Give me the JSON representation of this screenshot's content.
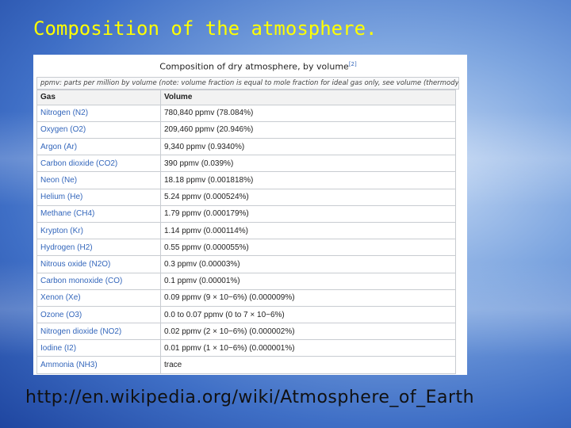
{
  "slide": {
    "title": "Composition of the atmosphere.",
    "url": "http://en.wikipedia.org/wiki/Atmosphere_of_Earth"
  },
  "table": {
    "caption": "Composition of dry atmosphere, by volume",
    "caption_ref": "[2]",
    "note": "ppmv: parts per million by volume (note: volume fraction is equal to mole fraction for ideal gas only, see volume (thermodynamics))",
    "headers": [
      "Gas",
      "Volume"
    ],
    "rows": [
      {
        "gas": "Nitrogen (N2)",
        "volume": "780,840 ppmv (78.084%)"
      },
      {
        "gas": "Oxygen (O2)",
        "volume": "209,460 ppmv (20.946%)"
      },
      {
        "gas": "Argon (Ar)",
        "volume": "9,340 ppmv (0.9340%)"
      },
      {
        "gas": "Carbon dioxide (CO2)",
        "volume": "390 ppmv (0.039%)"
      },
      {
        "gas": "Neon (Ne)",
        "volume": "18.18 ppmv (0.001818%)"
      },
      {
        "gas": "Helium (He)",
        "volume": "5.24 ppmv (0.000524%)"
      },
      {
        "gas": "Methane (CH4)",
        "volume": "1.79 ppmv (0.000179%)"
      },
      {
        "gas": "Krypton (Kr)",
        "volume": "1.14 ppmv (0.000114%)"
      },
      {
        "gas": "Hydrogen (H2)",
        "volume": "0.55 ppmv (0.000055%)"
      },
      {
        "gas": "Nitrous oxide (N2O)",
        "volume": "0.3 ppmv (0.00003%)"
      },
      {
        "gas": "Carbon monoxide (CO)",
        "volume": "0.1 ppmv (0.00001%)"
      },
      {
        "gas": "Xenon (Xe)",
        "volume": "0.09 ppmv (9 × 10−6%) (0.000009%)"
      },
      {
        "gas": "Ozone (O3)",
        "volume": "0.0 to 0.07 ppmv (0 to 7 × 10−6%)"
      },
      {
        "gas": "Nitrogen dioxide (NO2)",
        "volume": "0.02 ppmv (2 × 10−6%) (0.000002%)"
      },
      {
        "gas": "Iodine (I2)",
        "volume": "0.01 ppmv (1 × 10−6%) (0.000001%)"
      },
      {
        "gas": "Ammonia (NH3)",
        "volume": "trace"
      }
    ]
  }
}
